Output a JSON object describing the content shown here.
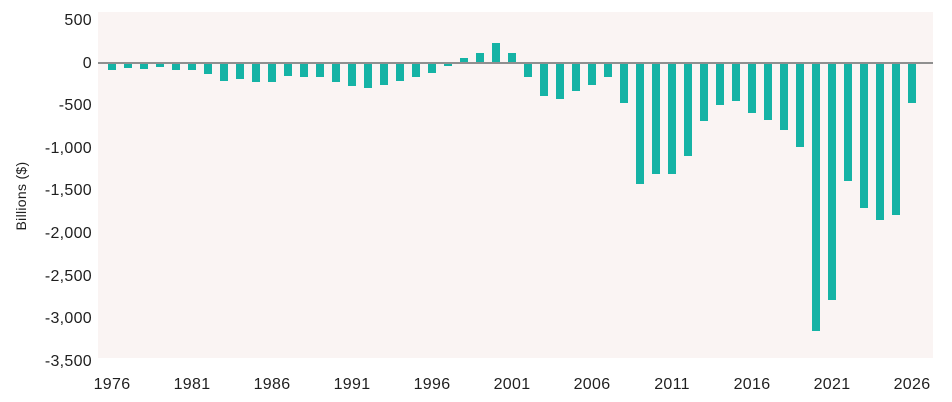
{
  "chart_data": {
    "type": "bar",
    "title": "",
    "xlabel": "",
    "ylabel": "Billions ($)",
    "legend": "none",
    "grid": false,
    "ylim": [
      -3500,
      500
    ],
    "bar_color": "#15b3a5",
    "plot_background": "#faf4f3",
    "zero_line_color": "#8f8f8f",
    "text_color": "#1f1f1f",
    "categories": [
      1976,
      1977,
      1978,
      1979,
      1980,
      1981,
      1982,
      1983,
      1984,
      1985,
      1986,
      1987,
      1988,
      1989,
      1990,
      1991,
      1992,
      1993,
      1994,
      1995,
      1996,
      1997,
      1998,
      1999,
      2000,
      2001,
      2002,
      2003,
      2004,
      2005,
      2006,
      2007,
      2008,
      2009,
      2010,
      2011,
      2012,
      2013,
      2014,
      2015,
      2016,
      2017,
      2018,
      2019,
      2020,
      2021,
      2022,
      2023,
      2024,
      2025,
      2026
    ],
    "values": [
      -73.7,
      -53.7,
      -59.2,
      -40.7,
      -73.8,
      -79.0,
      -128.0,
      -207.8,
      -185.4,
      -212.3,
      -221.2,
      -149.7,
      -155.2,
      -152.6,
      -221.0,
      -269.2,
      -290.3,
      -255.1,
      -203.2,
      -164.0,
      -107.4,
      -21.9,
      69.3,
      125.6,
      236.2,
      128.2,
      -157.8,
      -377.6,
      -412.7,
      -318.3,
      -248.2,
      -160.7,
      -458.6,
      -1412.7,
      -1294.4,
      -1299.6,
      -1087.0,
      -679.5,
      -484.6,
      -438.5,
      -584.7,
      -665.4,
      -779.0,
      -983.6,
      -3132.4,
      -2775.3,
      -1375.4,
      -1695.2,
      -1833.8,
      -1780,
      -460
    ],
    "y_tick_values": [
      500,
      0,
      -500,
      -1000,
      -1500,
      -2000,
      -2500,
      -3000,
      -3500
    ],
    "y_tick_labels": [
      "500",
      "0",
      "-500",
      "-1,000",
      "-1,500",
      "-2,000",
      "-2,500",
      "-3,000",
      "-3,500"
    ],
    "x_tick_years": [
      1976,
      1981,
      1986,
      1991,
      1996,
      2001,
      2006,
      2011,
      2016,
      2021,
      2026
    ],
    "x_tick_labels": [
      "1976",
      "1981",
      "1986",
      "1991",
      "1996",
      "2001",
      "2006",
      "2011",
      "2016",
      "2021",
      "2026"
    ]
  }
}
